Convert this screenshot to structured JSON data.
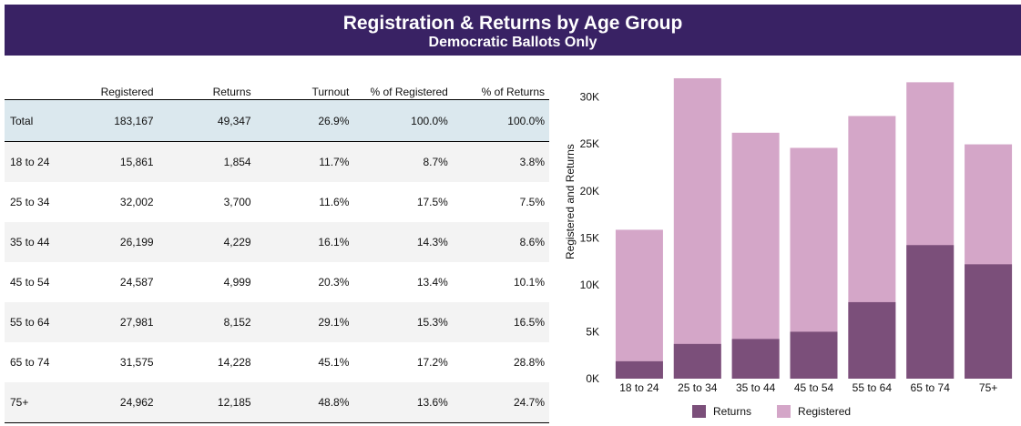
{
  "header": {
    "title": "Registration & Returns by Age Group",
    "subtitle": "Democratic Ballots Only"
  },
  "table": {
    "columns": [
      "",
      "Registered",
      "Returns",
      "Turnout",
      "% of Registered",
      "% of Returns"
    ],
    "total": [
      "Total",
      "183,167",
      "49,347",
      "26.9%",
      "100.0%",
      "100.0%"
    ],
    "rows": [
      [
        "18 to 24",
        "15,861",
        "1,854",
        "11.7%",
        "8.7%",
        "3.8%"
      ],
      [
        "25 to 34",
        "32,002",
        "3,700",
        "11.6%",
        "17.5%",
        "7.5%"
      ],
      [
        "35 to 44",
        "26,199",
        "4,229",
        "16.1%",
        "14.3%",
        "8.6%"
      ],
      [
        "45 to 54",
        "24,587",
        "4,999",
        "20.3%",
        "13.4%",
        "10.1%"
      ],
      [
        "55 to 64",
        "27,981",
        "8,152",
        "29.1%",
        "15.3%",
        "16.5%"
      ],
      [
        "65 to 74",
        "31,575",
        "14,228",
        "45.1%",
        "17.2%",
        "28.8%"
      ],
      [
        "75+",
        "24,962",
        "12,185",
        "48.8%",
        "13.6%",
        "24.7%"
      ]
    ]
  },
  "chart_data": {
    "type": "bar",
    "categories": [
      "18 to 24",
      "25 to 34",
      "35 to 44",
      "45 to 54",
      "55 to 64",
      "65 to 74",
      "75+"
    ],
    "series": [
      {
        "name": "Registered",
        "values": [
          15861,
          32002,
          26199,
          24587,
          27981,
          31575,
          24962
        ],
        "color": "#d4a6c8"
      },
      {
        "name": "Returns",
        "values": [
          1854,
          3700,
          4229,
          4999,
          8152,
          14228,
          12185
        ],
        "color": "#7b4f7a"
      }
    ],
    "ylabel": "Registered and Returns",
    "ylim": [
      0,
      32000
    ],
    "yticks": [
      0,
      5000,
      10000,
      15000,
      20000,
      25000,
      30000
    ],
    "ytick_labels": [
      "0K",
      "5K",
      "10K",
      "15K",
      "20K",
      "25K",
      "30K"
    ],
    "grid": false,
    "legend_position": "bottom",
    "legend": [
      "Returns",
      "Registered"
    ]
  }
}
